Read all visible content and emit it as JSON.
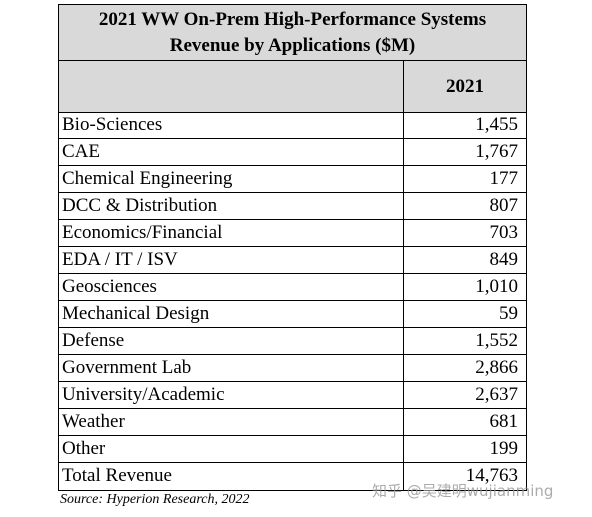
{
  "table": {
    "title": [
      "2021 WW On-Prem High-Performance Systems",
      "Revenue by Applications ($M)"
    ],
    "column_header": "2021",
    "rows": [
      [
        "Bio-Sciences",
        "1,455"
      ],
      [
        "CAE",
        "1,767"
      ],
      [
        "Chemical Engineering",
        "177"
      ],
      [
        "DCC & Distribution",
        "807"
      ],
      [
        "Economics/Financial",
        "703"
      ],
      [
        "EDA / IT / ISV",
        "849"
      ],
      [
        "Geosciences",
        "1,010"
      ],
      [
        "Mechanical Design",
        "59"
      ],
      [
        "Defense",
        "1,552"
      ],
      [
        "Government Lab",
        "2,866"
      ],
      [
        "University/Academic",
        "2,637"
      ],
      [
        "Weather",
        "681"
      ],
      [
        "Other",
        "199"
      ],
      [
        "Total Revenue",
        "14,763"
      ]
    ],
    "source": "Source: Hyperion Research, 2022"
  },
  "watermark": "知乎 @吴建明wujianming"
}
